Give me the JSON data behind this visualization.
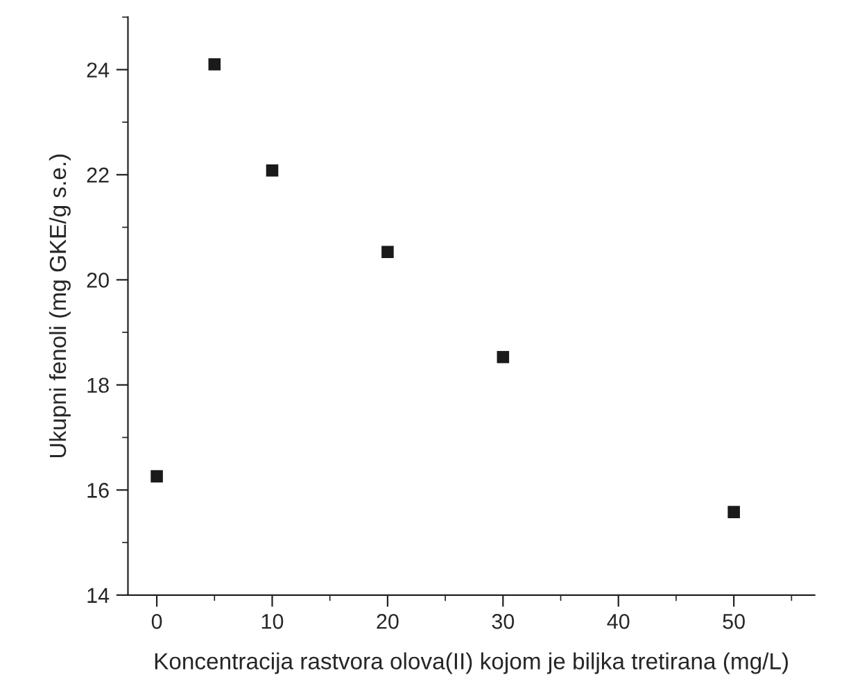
{
  "chart_data": {
    "type": "scatter",
    "xlabel": "Koncentracija rastvora olova(II) kojom je biljka tretirana (mg/L)",
    "ylabel": "Ukupni fenoli (mg GKE/g s.e.)",
    "x": [
      0,
      5,
      10,
      20,
      30,
      50
    ],
    "values": [
      16.26,
      24.1,
      22.08,
      20.53,
      18.53,
      15.58
    ],
    "color": "#1a1a1a",
    "marker": "square",
    "xlim": [
      -2.5,
      57
    ],
    "ylim": [
      14,
      25
    ],
    "xticks": [
      0,
      10,
      20,
      30,
      40,
      50
    ],
    "yticks": [
      14,
      16,
      18,
      20,
      22,
      24
    ],
    "grid": false,
    "legend": false
  }
}
